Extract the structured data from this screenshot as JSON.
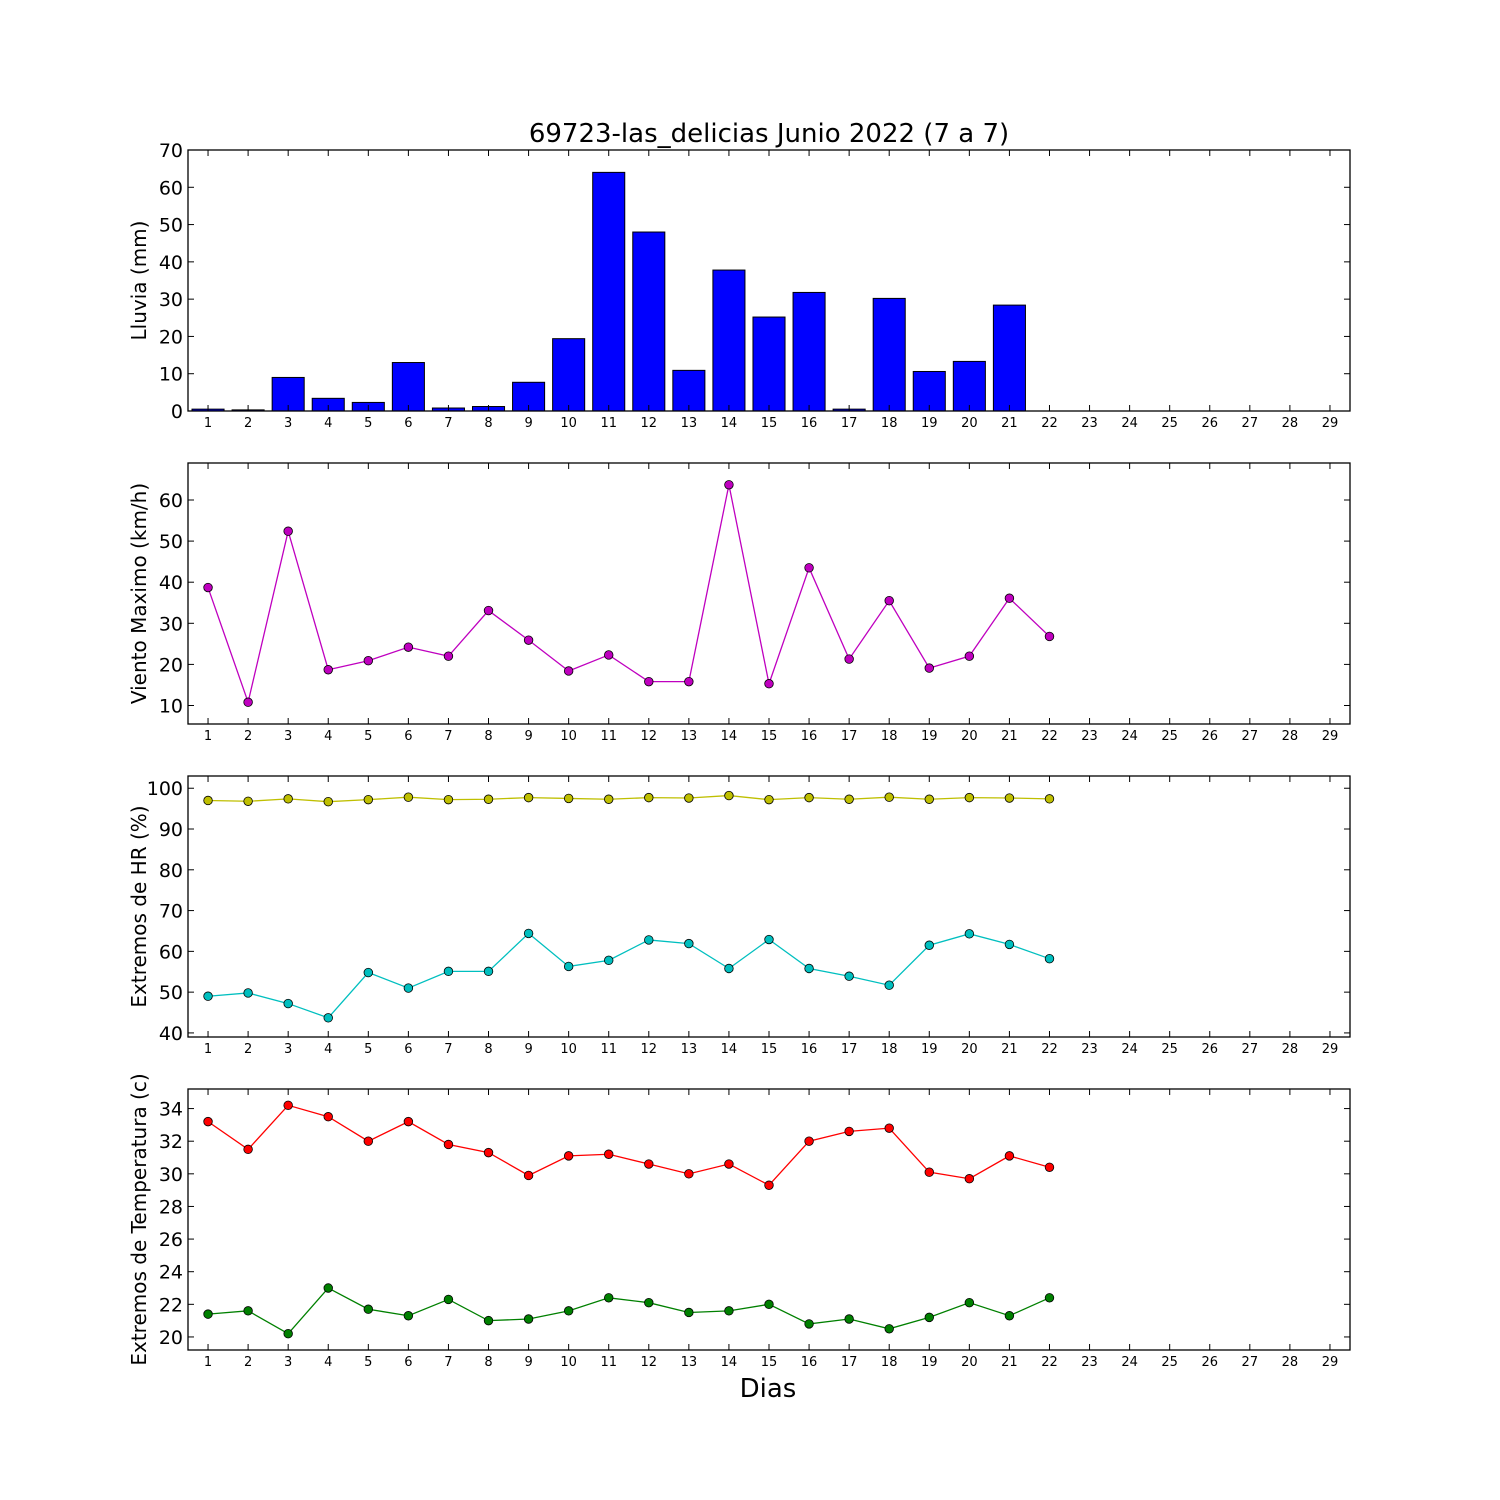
{
  "title": "69723-las_delicias Junio 2022  (7 a 7)",
  "xlabel": "Dias",
  "chart_data": [
    {
      "type": "bar",
      "ylabel": "Lluvia (mm)",
      "ylim": [
        0,
        70
      ],
      "yticks": [
        0,
        10,
        20,
        30,
        40,
        50,
        60,
        70
      ],
      "xticks": [
        1,
        2,
        3,
        4,
        5,
        6,
        7,
        8,
        9,
        10,
        11,
        12,
        13,
        14,
        15,
        16,
        17,
        18,
        19,
        20,
        21,
        22,
        23,
        24,
        25,
        26,
        27,
        28,
        29
      ],
      "series": [
        {
          "color": "#0000ff",
          "x": [
            1,
            2,
            3,
            4,
            5,
            6,
            7,
            8,
            9,
            10,
            11,
            12,
            13,
            14,
            15,
            16,
            17,
            18,
            19,
            20,
            21
          ],
          "values": [
            0.5,
            0.3,
            9.0,
            3.4,
            2.3,
            13.0,
            0.8,
            1.2,
            7.7,
            19.4,
            64.0,
            48.0,
            10.9,
            37.8,
            25.2,
            31.8,
            0.5,
            30.2,
            10.6,
            13.3,
            28.4
          ]
        }
      ]
    },
    {
      "type": "line",
      "ylabel": "Viento Maximo (km/h)",
      "ylim": [
        5.5,
        69
      ],
      "yticks": [
        10,
        20,
        30,
        40,
        50,
        60
      ],
      "xticks": [
        1,
        2,
        3,
        4,
        5,
        6,
        7,
        8,
        9,
        10,
        11,
        12,
        13,
        14,
        15,
        16,
        17,
        18,
        19,
        20,
        21,
        22,
        23,
        24,
        25,
        26,
        27,
        28,
        29
      ],
      "series": [
        {
          "color": "#bf00bf",
          "x": [
            1,
            2,
            3,
            4,
            5,
            6,
            7,
            8,
            9,
            10,
            11,
            12,
            13,
            14,
            15,
            16,
            17,
            18,
            19,
            20,
            21,
            22
          ],
          "values": [
            38.7,
            10.8,
            52.4,
            18.7,
            20.9,
            24.2,
            22.0,
            33.1,
            25.9,
            18.4,
            22.3,
            15.8,
            15.8,
            63.7,
            15.3,
            43.5,
            21.3,
            35.5,
            19.1,
            22.0,
            36.1,
            26.8
          ]
        }
      ]
    },
    {
      "type": "line",
      "ylabel": "Extremos de HR (%)",
      "ylim": [
        39,
        103
      ],
      "yticks": [
        40,
        50,
        60,
        70,
        80,
        90,
        100
      ],
      "xticks": [
        1,
        2,
        3,
        4,
        5,
        6,
        7,
        8,
        9,
        10,
        11,
        12,
        13,
        14,
        15,
        16,
        17,
        18,
        19,
        20,
        21,
        22,
        23,
        24,
        25,
        26,
        27,
        28,
        29
      ],
      "series": [
        {
          "color": "#bfbf00",
          "x": [
            1,
            2,
            3,
            4,
            5,
            6,
            7,
            8,
            9,
            10,
            11,
            12,
            13,
            14,
            15,
            16,
            17,
            18,
            19,
            20,
            21,
            22
          ],
          "values": [
            97.0,
            96.8,
            97.4,
            96.7,
            97.2,
            97.8,
            97.2,
            97.3,
            97.7,
            97.5,
            97.3,
            97.7,
            97.6,
            98.2,
            97.2,
            97.7,
            97.3,
            97.8,
            97.3,
            97.7,
            97.6,
            97.4
          ]
        },
        {
          "color": "#00bfbf",
          "x": [
            1,
            2,
            3,
            4,
            5,
            6,
            7,
            8,
            9,
            10,
            11,
            12,
            13,
            14,
            15,
            16,
            17,
            18,
            19,
            20,
            21,
            22
          ],
          "values": [
            49.0,
            49.8,
            47.2,
            43.7,
            54.8,
            51.0,
            55.1,
            55.1,
            64.4,
            56.3,
            57.8,
            62.8,
            61.9,
            55.8,
            62.9,
            55.8,
            53.9,
            51.7,
            61.5,
            64.3,
            61.7,
            58.2
          ]
        }
      ]
    },
    {
      "type": "line",
      "ylabel": "Extremos de Temperatura (c)",
      "ylim": [
        19.2,
        35.2
      ],
      "yticks": [
        20,
        22,
        24,
        26,
        28,
        30,
        32,
        34
      ],
      "xticks": [
        1,
        2,
        3,
        4,
        5,
        6,
        7,
        8,
        9,
        10,
        11,
        12,
        13,
        14,
        15,
        16,
        17,
        18,
        19,
        20,
        21,
        22,
        23,
        24,
        25,
        26,
        27,
        28,
        29
      ],
      "series": [
        {
          "color": "#ff0000",
          "x": [
            1,
            2,
            3,
            4,
            5,
            6,
            7,
            8,
            9,
            10,
            11,
            12,
            13,
            14,
            15,
            16,
            17,
            18,
            19,
            20,
            21,
            22
          ],
          "values": [
            33.2,
            31.5,
            34.2,
            33.5,
            32.0,
            33.2,
            31.8,
            31.3,
            29.9,
            31.1,
            31.2,
            30.6,
            30.0,
            30.6,
            29.3,
            32.0,
            32.6,
            32.8,
            30.1,
            29.7,
            31.1,
            30.4
          ]
        },
        {
          "color": "#008000",
          "x": [
            1,
            2,
            3,
            4,
            5,
            6,
            7,
            8,
            9,
            10,
            11,
            12,
            13,
            14,
            15,
            16,
            17,
            18,
            19,
            20,
            21,
            22
          ],
          "values": [
            21.4,
            21.6,
            20.2,
            23.0,
            21.7,
            21.3,
            22.3,
            21.0,
            21.1,
            21.6,
            22.4,
            22.1,
            21.5,
            21.6,
            22.0,
            20.8,
            21.1,
            20.5,
            21.2,
            22.1,
            21.3,
            22.4
          ]
        }
      ]
    }
  ]
}
